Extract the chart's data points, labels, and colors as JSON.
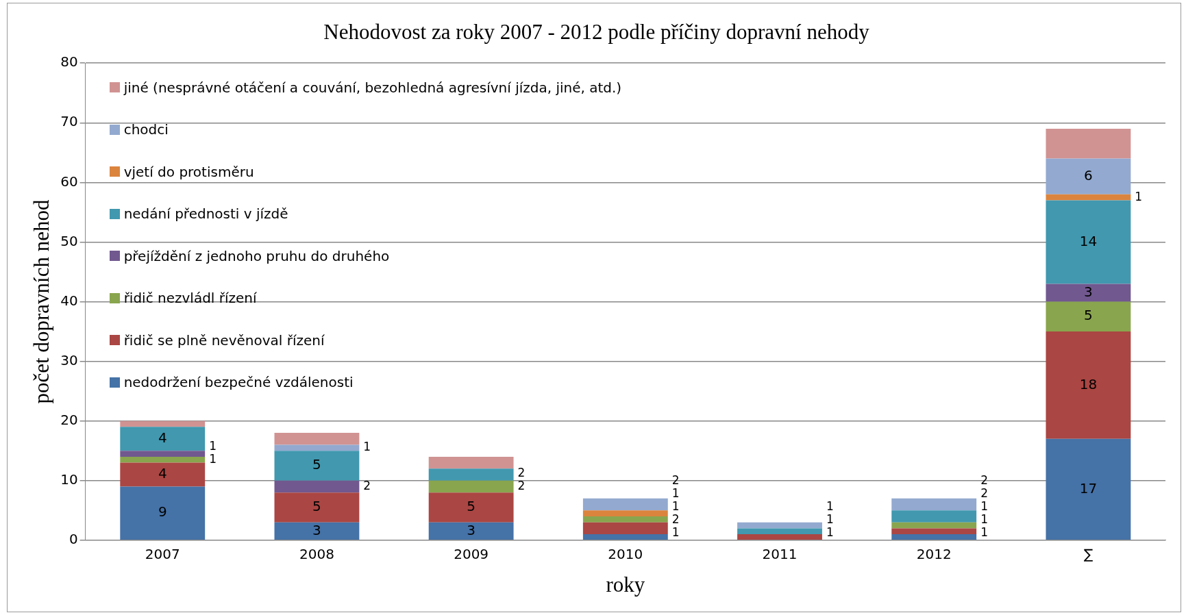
{
  "chart_data": {
    "type": "bar",
    "stacked": true,
    "title": "Nehodovost za roky 2007 - 2012 podle příčiny dopravní nehody",
    "xlabel": "roky",
    "ylabel": "počet dopravních nehod",
    "categories": [
      "2007",
      "2008",
      "2009",
      "2010",
      "2011",
      "2012",
      "∑"
    ],
    "ylim": [
      0,
      80
    ],
    "yticks": [
      0,
      10,
      20,
      30,
      40,
      50,
      60,
      70,
      80
    ],
    "grid": "y",
    "legend": "top left",
    "series": [
      {
        "name": "nedodržení bezpečné vzdálenosti",
        "color": "#4572a7",
        "values": [
          9,
          3,
          3,
          1,
          null,
          1,
          17
        ],
        "value_labels": [
          "9",
          "3",
          "3",
          "1",
          null,
          "1",
          "17"
        ]
      },
      {
        "name": "řidič se plně nevěnoval řízení",
        "color": "#aa4643",
        "values": [
          4,
          5,
          5,
          2,
          1,
          1,
          18
        ],
        "value_labels": [
          "4",
          "5",
          "5",
          "2",
          "1",
          "1",
          "18"
        ]
      },
      {
        "name": "řidič nezvládl řízení",
        "color": "#89a54e",
        "values": [
          1,
          null,
          2,
          1,
          null,
          1,
          5
        ],
        "value_labels": [
          "1",
          null,
          "2",
          "1",
          null,
          "1",
          "5"
        ]
      },
      {
        "name": "přejíždění z jednoho pruhu do druhého",
        "color": "#71588f",
        "values": [
          1,
          2,
          null,
          null,
          null,
          null,
          3
        ],
        "value_labels": [
          "1",
          "2",
          null,
          null,
          null,
          null,
          "3"
        ]
      },
      {
        "name": "nedání přednosti v jízdě",
        "color": "#4198af",
        "values": [
          4,
          5,
          2,
          null,
          1,
          2,
          14
        ],
        "value_labels": [
          "4",
          "5",
          "2",
          null,
          "1",
          "2",
          "14"
        ]
      },
      {
        "name": "vjetí do protisměru",
        "color": "#db843d",
        "values": [
          null,
          null,
          null,
          1,
          null,
          null,
          1
        ],
        "value_labels": [
          null,
          null,
          null,
          "1",
          null,
          null,
          "1"
        ]
      },
      {
        "name": "chodci",
        "color": "#93a9cf",
        "values": [
          null,
          1,
          null,
          2,
          1,
          2,
          6
        ],
        "value_labels": [
          null,
          "1",
          null,
          "2",
          "1",
          "2",
          "6"
        ]
      },
      {
        "name": "jiné (nesprávné otáčení a couvání, bezohledná agresívní jízda, jiné, atd.)",
        "color": "#d09392",
        "values": [
          1,
          2,
          2,
          null,
          null,
          null,
          5
        ]
      }
    ]
  }
}
